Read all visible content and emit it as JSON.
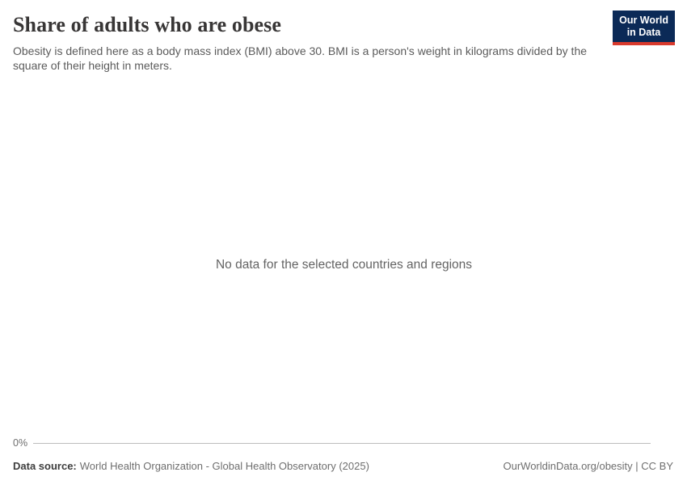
{
  "header": {
    "title": "Share of adults who are obese",
    "subtitle": "Obesity is defined here as a body mass index (BMI) above 30. BMI is a person's weight in kilograms divided by the square of their height in meters.",
    "logo": {
      "line1": "Our World",
      "line2": "in Data"
    }
  },
  "chart": {
    "no_data_message": "No data for the selected countries and regions",
    "y_axis": {
      "tick": "0%"
    }
  },
  "footer": {
    "data_source_label": "Data source:",
    "data_source_value": "World Health Organization - Global Health Observatory (2025)",
    "citation": "OurWorldinData.org/obesity | CC BY"
  },
  "colors": {
    "logo_background": "#0b2a57",
    "logo_accent_red": "#d93a2d",
    "axis_line": "#bdbdbd",
    "title_text": "#383636",
    "muted_text": "#6e6e6e"
  },
  "chart_data": {
    "type": "line",
    "title": "Share of adults who are obese",
    "subtitle": "Obesity is defined here as a body mass index (BMI) above 30. BMI is a person's weight in kilograms divided by the square of their height in meters.",
    "series": [],
    "x": [],
    "xlabel": "",
    "ylabel": "",
    "y_ticks": [
      "0%"
    ],
    "ylim_min_tick": "0%",
    "grid": false,
    "legend": "none",
    "annotations": [
      "No data for the selected countries and regions"
    ]
  }
}
